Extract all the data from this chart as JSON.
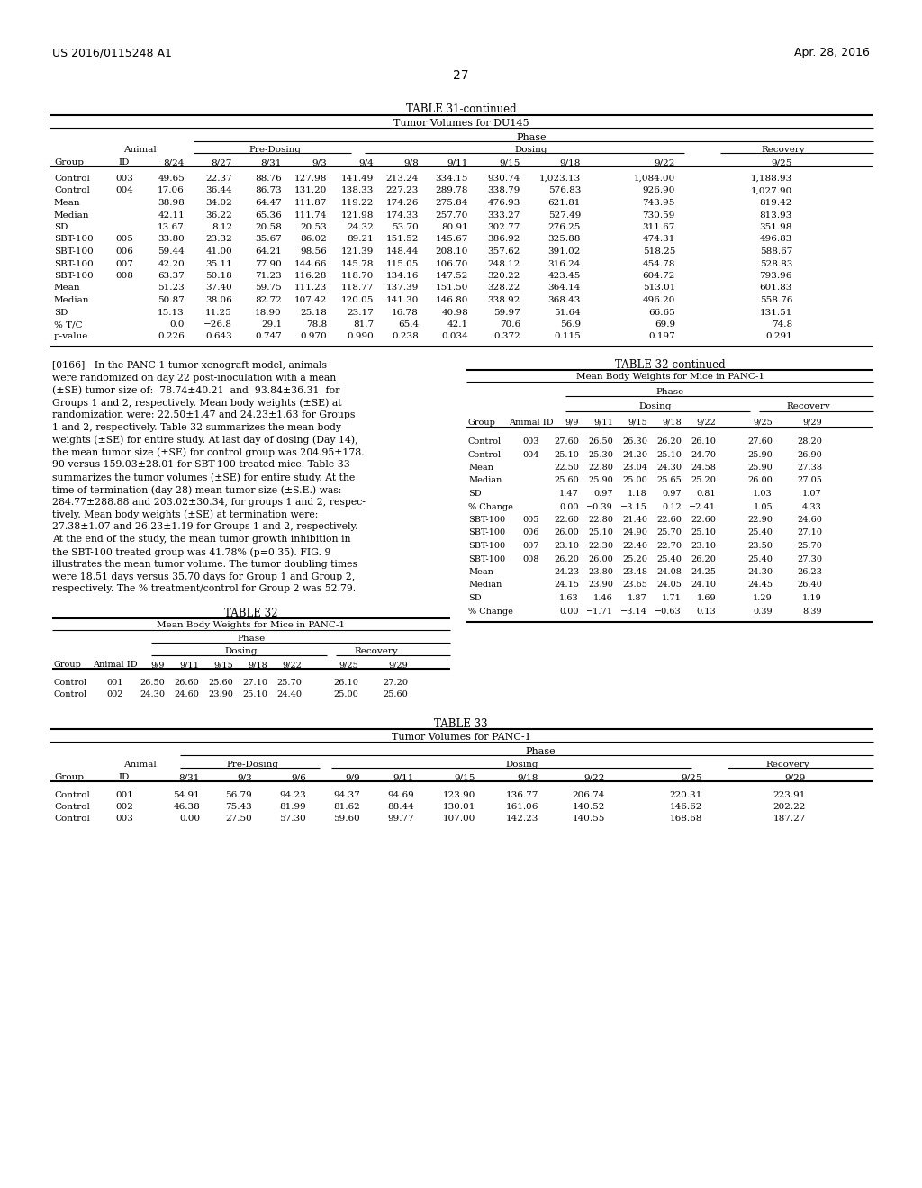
{
  "header_left": "US 2016/0115248 A1",
  "header_right": "Apr. 28, 2016",
  "page_number": "27",
  "table31_title": "TABLE 31-continued",
  "table31_subtitle": "Tumor Volumes for DU145",
  "table31_cols": [
    "Group",
    "ID",
    "8/24",
    "8/27",
    "8/31",
    "9/3",
    "9/4",
    "9/8",
    "9/11",
    "9/15",
    "9/18",
    "9/22",
    "9/25"
  ],
  "table31_data": [
    [
      "Control",
      "003",
      "49.65",
      "22.37",
      "88.76",
      "127.98",
      "141.49",
      "213.24",
      "334.15",
      "930.74",
      "1,023.13",
      "1,084.00",
      "1,188.93"
    ],
    [
      "Control",
      "004",
      "17.06",
      "36.44",
      "86.73",
      "131.20",
      "138.33",
      "227.23",
      "289.78",
      "338.79",
      "576.83",
      "926.90",
      "1,027.90"
    ],
    [
      "Mean",
      "",
      "38.98",
      "34.02",
      "64.47",
      "111.87",
      "119.22",
      "174.26",
      "275.84",
      "476.93",
      "621.81",
      "743.95",
      "819.42"
    ],
    [
      "Median",
      "",
      "42.11",
      "36.22",
      "65.36",
      "111.74",
      "121.98",
      "174.33",
      "257.70",
      "333.27",
      "527.49",
      "730.59",
      "813.93"
    ],
    [
      "SD",
      "",
      "13.67",
      "8.12",
      "20.58",
      "20.53",
      "24.32",
      "53.70",
      "80.91",
      "302.77",
      "276.25",
      "311.67",
      "351.98"
    ],
    [
      "SBT-100",
      "005",
      "33.80",
      "23.32",
      "35.67",
      "86.02",
      "89.21",
      "151.52",
      "145.67",
      "386.92",
      "325.88",
      "474.31",
      "496.83"
    ],
    [
      "SBT-100",
      "006",
      "59.44",
      "41.00",
      "64.21",
      "98.56",
      "121.39",
      "148.44",
      "208.10",
      "357.62",
      "391.02",
      "518.25",
      "588.67"
    ],
    [
      "SBT-100",
      "007",
      "42.20",
      "35.11",
      "77.90",
      "144.66",
      "145.78",
      "115.05",
      "106.70",
      "248.12",
      "316.24",
      "454.78",
      "528.83"
    ],
    [
      "SBT-100",
      "008",
      "63.37",
      "50.18",
      "71.23",
      "116.28",
      "118.70",
      "134.16",
      "147.52",
      "320.22",
      "423.45",
      "604.72",
      "793.96"
    ],
    [
      "Mean",
      "",
      "51.23",
      "37.40",
      "59.75",
      "111.23",
      "118.77",
      "137.39",
      "151.50",
      "328.22",
      "364.14",
      "513.01",
      "601.83"
    ],
    [
      "Median",
      "",
      "50.87",
      "38.06",
      "82.72",
      "107.42",
      "120.05",
      "141.30",
      "146.80",
      "338.92",
      "368.43",
      "496.20",
      "558.76"
    ],
    [
      "SD",
      "",
      "15.13",
      "11.25",
      "18.90",
      "25.18",
      "23.17",
      "16.78",
      "40.98",
      "59.97",
      "51.64",
      "66.65",
      "131.51"
    ],
    [
      "% T/C",
      "",
      "0.0",
      "−26.8",
      "29.1",
      "78.8",
      "81.7",
      "65.4",
      "42.1",
      "70.6",
      "56.9",
      "69.9",
      "74.8"
    ],
    [
      "p-value",
      "",
      "0.226",
      "0.643",
      "0.747",
      "0.970",
      "0.990",
      "0.238",
      "0.034",
      "0.372",
      "0.115",
      "0.197",
      "0.291"
    ]
  ],
  "para_lines": [
    "[0166]   In the PANC-1 tumor xenograft model, animals",
    "were randomized on day 22 post-inoculation with a mean",
    "(±SE) tumor size of:  78.74±40.21  and  93.84±36.31  for",
    "Groups 1 and 2, respectively. Mean body weights (±SE) at",
    "randomization were: 22.50±1.47 and 24.23±1.63 for Groups",
    "1 and 2, respectively. Table 32 summarizes the mean body",
    "weights (±SE) for entire study. At last day of dosing (Day 14),",
    "the mean tumor size (±SE) for control group was 204.95±178.",
    "90 versus 159.03±28.01 for SBT-100 treated mice. Table 33",
    "summarizes the tumor volumes (±SE) for entire study. At the",
    "time of termination (day 28) mean tumor size (±S.E.) was:",
    "284.77±288.88 and 203.02±30.34, for groups 1 and 2, respec-",
    "tively. Mean body weights (±SE) at termination were:",
    "27.38±1.07 and 26.23±1.19 for Groups 1 and 2, respectively.",
    "At the end of the study, the mean tumor growth inhibition in",
    "the SBT-100 treated group was 41.78% (p=0.35). FIG. 9",
    "illustrates the mean tumor volume. The tumor doubling times",
    "were 18.51 days versus 35.70 days for Group 1 and Group 2,",
    "respectively. The % treatment/control for Group 2 was 52.79."
  ],
  "table32_title": "TABLE 32",
  "table32_subtitle": "Mean Body Weights for Mice in PANC-1",
  "table32_cols": [
    "Group",
    "Animal ID",
    "9/9",
    "9/11",
    "9/15",
    "9/18",
    "9/22",
    "9/25",
    "9/29"
  ],
  "table32_data": [
    [
      "Control",
      "001",
      "26.50",
      "26.60",
      "25.60",
      "27.10",
      "25.70",
      "26.10",
      "27.20"
    ],
    [
      "Control",
      "002",
      "24.30",
      "24.60",
      "23.90",
      "25.10",
      "24.40",
      "25.00",
      "25.60"
    ]
  ],
  "table32cont_title": "TABLE 32-continued",
  "table32cont_subtitle": "Mean Body Weights for Mice in PANC-1",
  "table32cont_cols": [
    "Group",
    "Animal ID",
    "9/9",
    "9/11",
    "9/15",
    "9/18",
    "9/22",
    "9/25",
    "9/29"
  ],
  "table32cont_data": [
    [
      "Control",
      "003",
      "27.60",
      "26.50",
      "26.30",
      "26.20",
      "26.10",
      "27.60",
      "28.20"
    ],
    [
      "Control",
      "004",
      "25.10",
      "25.30",
      "24.20",
      "25.10",
      "24.70",
      "25.90",
      "26.90"
    ],
    [
      "Mean",
      "",
      "22.50",
      "22.80",
      "23.04",
      "24.30",
      "24.58",
      "25.90",
      "27.38"
    ],
    [
      "Median",
      "",
      "25.60",
      "25.90",
      "25.00",
      "25.65",
      "25.20",
      "26.00",
      "27.05"
    ],
    [
      "SD",
      "",
      "1.47",
      "0.97",
      "1.18",
      "0.97",
      "0.81",
      "1.03",
      "1.07"
    ],
    [
      "% Change",
      "",
      "0.00",
      "−0.39",
      "−3.15",
      "0.12",
      "−2.41",
      "1.05",
      "4.33"
    ],
    [
      "SBT-100",
      "005",
      "22.60",
      "22.80",
      "21.40",
      "22.60",
      "22.60",
      "22.90",
      "24.60"
    ],
    [
      "SBT-100",
      "006",
      "26.00",
      "25.10",
      "24.90",
      "25.70",
      "25.10",
      "25.40",
      "27.10"
    ],
    [
      "SBT-100",
      "007",
      "23.10",
      "22.30",
      "22.40",
      "22.70",
      "23.10",
      "23.50",
      "25.70"
    ],
    [
      "SBT-100",
      "008",
      "26.20",
      "26.00",
      "25.20",
      "25.40",
      "26.20",
      "25.40",
      "27.30"
    ],
    [
      "Mean",
      "",
      "24.23",
      "23.80",
      "23.48",
      "24.08",
      "24.25",
      "24.30",
      "26.23"
    ],
    [
      "Median",
      "",
      "24.15",
      "23.90",
      "23.65",
      "24.05",
      "24.10",
      "24.45",
      "26.40"
    ],
    [
      "SD",
      "",
      "1.63",
      "1.46",
      "1.87",
      "1.71",
      "1.69",
      "1.29",
      "1.19"
    ],
    [
      "% Change",
      "",
      "0.00",
      "−1.71",
      "−3.14",
      "−0.63",
      "0.13",
      "0.39",
      "8.39"
    ]
  ],
  "table33_title": "TABLE 33",
  "table33_subtitle": "Tumor Volumes for PANC-1",
  "table33_cols": [
    "Group",
    "ID",
    "8/31",
    "9/3",
    "9/6",
    "9/9",
    "9/11",
    "9/15",
    "9/18",
    "9/22",
    "9/25",
    "9/29"
  ],
  "table33_data": [
    [
      "Control",
      "001",
      "54.91",
      "56.79",
      "94.23",
      "94.37",
      "94.69",
      "123.90",
      "136.77",
      "206.74",
      "220.31",
      "223.91"
    ],
    [
      "Control",
      "002",
      "46.38",
      "75.43",
      "81.99",
      "81.62",
      "88.44",
      "130.01",
      "161.06",
      "140.52",
      "146.62",
      "202.22"
    ],
    [
      "Control",
      "003",
      "0.00",
      "27.50",
      "57.30",
      "59.60",
      "99.77",
      "107.00",
      "142.23",
      "140.55",
      "168.68",
      "187.27"
    ]
  ],
  "bg_color": "#ffffff"
}
